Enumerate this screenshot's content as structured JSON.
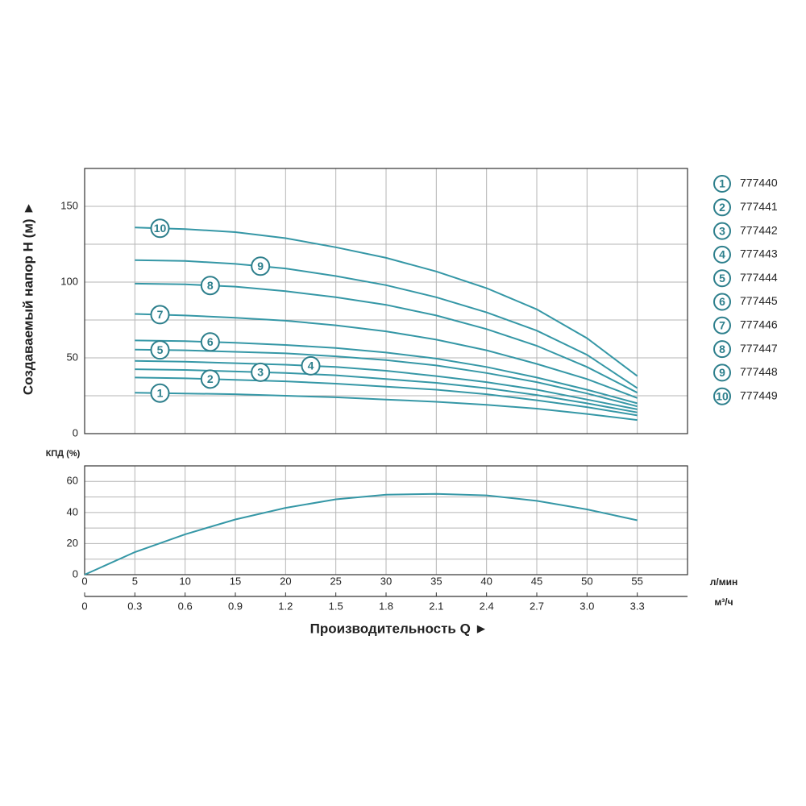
{
  "chart_data": [
    {
      "type": "line",
      "ylabel": "Создаваемый напор H (м) ►",
      "x": [
        5,
        10,
        15,
        20,
        25,
        30,
        35,
        40,
        45,
        50,
        55
      ],
      "xlim": [
        0,
        60
      ],
      "ylim": [
        0,
        175
      ],
      "yticks": [
        0,
        50,
        100,
        150
      ],
      "y_minor_ticks": [
        25,
        75,
        125
      ],
      "grid": true,
      "series": [
        {
          "name": "777440",
          "label": "1",
          "color": "#3597a6",
          "values": [
            27,
            26.5,
            26,
            25,
            24,
            22.5,
            21,
            19,
            16.5,
            13,
            9
          ]
        },
        {
          "name": "777441",
          "label": "2",
          "color": "#3597a6",
          "values": [
            37,
            36.5,
            35.5,
            34.5,
            33,
            31,
            29,
            26,
            22,
            17.5,
            12
          ]
        },
        {
          "name": "777442",
          "label": "3",
          "color": "#3597a6",
          "values": [
            42.5,
            42,
            41,
            40,
            38.5,
            36,
            33.5,
            30,
            25.5,
            20,
            14
          ]
        },
        {
          "name": "777443",
          "label": "4",
          "color": "#3597a6",
          "values": [
            48,
            47.5,
            46.5,
            45.5,
            44,
            41.5,
            38,
            34,
            29,
            22.5,
            16
          ]
        },
        {
          "name": "777444",
          "label": "5",
          "color": "#3597a6",
          "values": [
            55.5,
            55,
            54,
            53,
            51,
            48.5,
            45,
            40,
            34,
            26.5,
            18
          ]
        },
        {
          "name": "777445",
          "label": "6",
          "color": "#3597a6",
          "values": [
            61.5,
            61,
            60,
            58.5,
            56.5,
            53.5,
            49.5,
            44,
            37,
            29,
            20
          ]
        },
        {
          "name": "777446",
          "label": "7",
          "color": "#3597a6",
          "values": [
            79,
            78,
            76.5,
            74.5,
            71.5,
            67.5,
            62,
            55,
            46,
            36,
            23.5
          ]
        },
        {
          "name": "777447",
          "label": "8",
          "color": "#3597a6",
          "values": [
            99,
            98.5,
            97,
            94,
            90,
            85,
            78,
            69,
            58,
            44,
            27
          ]
        },
        {
          "name": "777448",
          "label": "9",
          "color": "#3597a6",
          "values": [
            114.5,
            114,
            112,
            109,
            104,
            98,
            90,
            80,
            68,
            52,
            30
          ]
        },
        {
          "name": "777449",
          "label": "10",
          "color": "#3597a6",
          "values": [
            136,
            135,
            133,
            129,
            123,
            116,
            107,
            96,
            82,
            63,
            38
          ]
        }
      ]
    },
    {
      "type": "line",
      "ylabel": "КПД (%)",
      "xlabel": "Производительность Q ►",
      "x_unit": "л/мин",
      "x2_unit": "м³/ч",
      "x": [
        0,
        5,
        10,
        15,
        20,
        25,
        30,
        35,
        40,
        45,
        50,
        55
      ],
      "xlim": [
        0,
        60
      ],
      "xticks": [
        0,
        5,
        10,
        15,
        20,
        25,
        30,
        35,
        40,
        45,
        50,
        55
      ],
      "x2lim": [
        0,
        3.6
      ],
      "x2ticks": [
        0,
        0.3,
        0.6,
        0.9,
        1.2,
        1.5,
        1.8,
        2.1,
        2.4,
        2.7,
        {
          "value": 3,
          "label": "3.0"
        },
        3.3
      ],
      "ylim": [
        0,
        70
      ],
      "yticks": [
        0,
        20,
        40,
        60
      ],
      "y_minor_ticks": [
        10,
        30,
        50
      ],
      "grid": true,
      "series": [
        {
          "name": "КПД",
          "color": "#3597a6",
          "values": [
            0,
            14.5,
            26,
            35.5,
            43,
            48.5,
            51.5,
            52,
            51,
            47.5,
            42,
            35
          ]
        }
      ]
    }
  ]
}
